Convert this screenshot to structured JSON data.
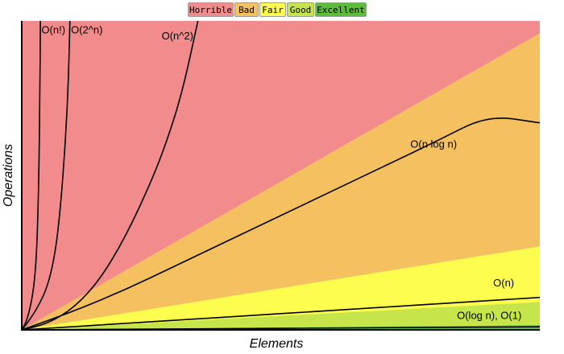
{
  "legend": [
    {
      "label": "Horrible",
      "color": "#f28c8c"
    },
    {
      "label": "Bad",
      "color": "#f5c160"
    },
    {
      "label": "Fair",
      "color": "#fdfd50"
    },
    {
      "label": "Good",
      "color": "#c6e54a"
    },
    {
      "label": "Excellent",
      "color": "#5cbd3a"
    }
  ],
  "chart_data": {
    "type": "line",
    "xlabel": "Elements",
    "ylabel": "Operations",
    "xlim": [
      0,
      100
    ],
    "ylim": [
      0,
      100
    ],
    "grid": false,
    "legend_position": "top-center",
    "regions": [
      {
        "name": "Horrible",
        "color": "#f28c8c",
        "from_slope": 0,
        "to_slope": "top"
      },
      {
        "name": "Bad",
        "color": "#f5c160",
        "slope_upper": 0.96
      },
      {
        "name": "Fair",
        "color": "#fdfd50",
        "slope_upper": 0.27
      },
      {
        "name": "Good",
        "color": "#c6e54a",
        "slope_upper": 0.09
      },
      {
        "name": "Excellent",
        "color": "#5cbd3a",
        "slope_upper": 0.015
      }
    ],
    "series": [
      {
        "name": "O(n!)",
        "values": [
          [
            0,
            0
          ],
          [
            1,
            3
          ],
          [
            2,
            10
          ],
          [
            2.6,
            18
          ],
          [
            3,
            30
          ],
          [
            3.3,
            50
          ],
          [
            3.5,
            75
          ],
          [
            3.6,
            100
          ]
        ]
      },
      {
        "name": "O(2^n)",
        "values": [
          [
            0,
            0
          ],
          [
            1,
            2
          ],
          [
            3,
            7
          ],
          [
            5,
            14
          ],
          [
            6.5,
            25
          ],
          [
            7.5,
            40
          ],
          [
            8.4,
            60
          ],
          [
            9,
            80
          ],
          [
            9.3,
            100
          ]
        ]
      },
      {
        "name": "O(n^2)",
        "values": [
          [
            0,
            0
          ],
          [
            5,
            2
          ],
          [
            10,
            7
          ],
          [
            15,
            16
          ],
          [
            20,
            30
          ],
          [
            25,
            48
          ],
          [
            28,
            61
          ],
          [
            31,
            77
          ],
          [
            34,
            100
          ]
        ]
      },
      {
        "name": "O(n log n)",
        "values": [
          [
            0,
            0
          ],
          [
            10,
            6
          ],
          [
            20,
            13
          ],
          [
            30,
            21
          ],
          [
            40,
            29
          ],
          [
            50,
            37
          ],
          [
            60,
            45
          ],
          [
            70,
            53
          ],
          [
            80,
            61
          ],
          [
            90,
            69.5
          ],
          [
            100,
            67
          ]
        ]
      },
      {
        "name": "O(n)",
        "values": [
          [
            0,
            0
          ],
          [
            100,
            10.5
          ]
        ]
      },
      {
        "name": "O(log n), O(1)",
        "values": [
          [
            0,
            0
          ],
          [
            100,
            1
          ]
        ]
      }
    ],
    "annotations": [
      {
        "text": "O(n!)",
        "x": 3.8,
        "y": 96
      },
      {
        "text": "O(2^n)",
        "x": 9.5,
        "y": 96
      },
      {
        "text": "O(n^2)",
        "x": 27,
        "y": 94
      },
      {
        "text": "O(n log n)",
        "x": 75,
        "y": 59
      },
      {
        "text": "O(n)",
        "x": 91,
        "y": 14
      },
      {
        "text": "O(log n), O(1)",
        "x": 84,
        "y": 3.5
      }
    ]
  }
}
